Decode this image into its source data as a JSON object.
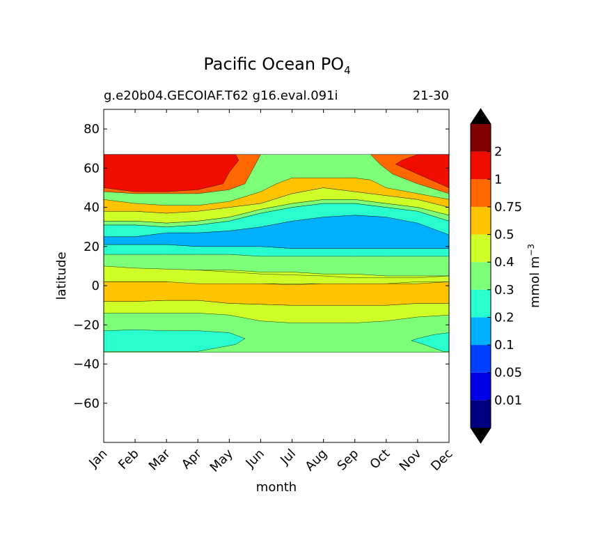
{
  "chart_data": {
    "type": "contourf",
    "title": "Pacific Ocean PO",
    "title_subscript": "4",
    "subtitle_left": "g.e20b04.GECOIAF.T62 g16.eval.091i",
    "subtitle_right": "21-30",
    "xlabel": "month",
    "ylabel": "latitude",
    "x_categories": [
      "Jan",
      "Feb",
      "Mar",
      "Apr",
      "May",
      "Jun",
      "Jul",
      "Aug",
      "Sep",
      "Oct",
      "Nov",
      "Dec"
    ],
    "xlim": [
      0,
      11
    ],
    "ylim": [
      -80,
      90
    ],
    "yticks": [
      80,
      60,
      40,
      20,
      0,
      -20,
      -40,
      -60
    ],
    "ytick_labels": [
      "80",
      "60",
      "40",
      "20",
      "0",
      "−20",
      "−40",
      "−60"
    ],
    "data_lat_range": [
      -34,
      67
    ],
    "colorbar": {
      "label": "mmol m",
      "label_superscript": "−3",
      "extend": "both",
      "tick_labels": [
        "0.01",
        "0.05",
        "0.1",
        "0.2",
        "0.3",
        "0.4",
        "0.5",
        "0.75",
        "1",
        "2"
      ],
      "colors": [
        "#000080",
        "#0000e6",
        "#0040ff",
        "#00b0ff",
        "#29ffce",
        "#7dff7a",
        "#ceff29",
        "#ffc400",
        "#ff6800",
        "#f10c00",
        "#800000"
      ],
      "under_color": "#000000",
      "over_color": "#000000"
    },
    "bands": [
      {
        "name": "band-0.2-0.3-south",
        "color": "#29ffce",
        "points": [
          [
            0,
            -33.5
          ],
          [
            0,
            -23
          ],
          [
            1,
            -22.5
          ],
          [
            2,
            -23
          ],
          [
            3,
            -23
          ],
          [
            4,
            -24
          ],
          [
            4.5,
            -27
          ],
          [
            4.2,
            -30
          ],
          [
            3,
            -33.5
          ]
        ]
      },
      {
        "name": "band-0.2-0.3-south-east",
        "color": "#29ffce",
        "points": [
          [
            11,
            -33.5
          ],
          [
            11,
            -24
          ],
          [
            10.5,
            -25
          ],
          [
            10,
            -27
          ],
          [
            9.8,
            -28
          ],
          [
            10.2,
            -30
          ],
          [
            10.8,
            -33.5
          ]
        ]
      },
      {
        "name": "band-0.4-0.5-south",
        "color": "#ceff29",
        "points": [
          [
            0,
            -8
          ],
          [
            1,
            -8
          ],
          [
            2,
            -7.5
          ],
          [
            3,
            -7.5
          ],
          [
            4,
            -9
          ],
          [
            5,
            -9.5
          ],
          [
            6,
            -10
          ],
          [
            7,
            -10
          ],
          [
            8,
            -10
          ],
          [
            9,
            -10
          ],
          [
            10,
            -9
          ],
          [
            11,
            -9
          ],
          [
            11,
            -15
          ],
          [
            10,
            -16
          ],
          [
            9,
            -18
          ],
          [
            8,
            -19
          ],
          [
            7,
            -19
          ],
          [
            6,
            -19
          ],
          [
            5,
            -18
          ],
          [
            4,
            -15
          ],
          [
            3,
            -14
          ],
          [
            2,
            -14
          ],
          [
            1,
            -14
          ],
          [
            0,
            -14
          ]
        ]
      },
      {
        "name": "band-0.5-0.75-equator",
        "color": "#ffc400",
        "points": [
          [
            0,
            2
          ],
          [
            1,
            2
          ],
          [
            2,
            2
          ],
          [
            3,
            2
          ],
          [
            4,
            2
          ],
          [
            5,
            2
          ],
          [
            6,
            2
          ],
          [
            7,
            2
          ],
          [
            8,
            3
          ],
          [
            9,
            3.5
          ],
          [
            10,
            4
          ],
          [
            11,
            5
          ],
          [
            11,
            -9
          ],
          [
            10,
            -9
          ],
          [
            9,
            -10
          ],
          [
            8,
            -10
          ],
          [
            7,
            -10
          ],
          [
            6,
            -10
          ],
          [
            5,
            -9.5
          ],
          [
            4,
            -9
          ],
          [
            3,
            -7.5
          ],
          [
            2,
            -7.5
          ],
          [
            1,
            -8
          ],
          [
            0,
            -8
          ]
        ]
      },
      {
        "name": "band-0.4-0.5-north-eq",
        "color": "#ceff29",
        "points": [
          [
            0,
            8
          ],
          [
            1,
            8
          ],
          [
            2,
            8
          ],
          [
            3,
            8
          ],
          [
            4,
            8
          ],
          [
            5,
            7
          ],
          [
            6,
            7
          ],
          [
            7,
            6
          ],
          [
            8,
            6
          ],
          [
            9,
            5
          ],
          [
            10,
            5
          ],
          [
            11,
            5
          ],
          [
            11,
            2
          ],
          [
            10,
            1
          ],
          [
            9,
            1
          ],
          [
            8,
            1
          ],
          [
            7,
            1
          ],
          [
            6,
            0.5
          ],
          [
            5,
            1
          ],
          [
            4,
            1.5
          ],
          [
            3,
            1.5
          ],
          [
            2,
            2
          ],
          [
            1,
            2
          ],
          [
            0,
            2
          ]
        ]
      },
      {
        "name": "band-0.4-0.5-north-trop",
        "color": "#ceff29",
        "points": [
          [
            0,
            10
          ],
          [
            1,
            9
          ],
          [
            2,
            8.5
          ],
          [
            3,
            8
          ],
          [
            4,
            7
          ],
          [
            5,
            6
          ],
          [
            6,
            5.5
          ],
          [
            7,
            5
          ],
          [
            8,
            4
          ],
          [
            9,
            4
          ],
          [
            10,
            4
          ],
          [
            11,
            5
          ],
          [
            11,
            2
          ],
          [
            10,
            2
          ],
          [
            9,
            1
          ],
          [
            8,
            1
          ],
          [
            7,
            1
          ],
          [
            6,
            1
          ],
          [
            5,
            1
          ],
          [
            4,
            1
          ],
          [
            3,
            1
          ],
          [
            2,
            2
          ],
          [
            1,
            2
          ],
          [
            0,
            2
          ]
        ]
      },
      {
        "name": "band-0.2-0.3-tropics",
        "color": "#29ffce",
        "points": [
          [
            0,
            21
          ],
          [
            1,
            21
          ],
          [
            2,
            21
          ],
          [
            3,
            20
          ],
          [
            4,
            20
          ],
          [
            5,
            20
          ],
          [
            6,
            19
          ],
          [
            7,
            19
          ],
          [
            8,
            19
          ],
          [
            9,
            19
          ],
          [
            10,
            19
          ],
          [
            11,
            19
          ],
          [
            11,
            15
          ],
          [
            10,
            15
          ],
          [
            9,
            15
          ],
          [
            8,
            15
          ],
          [
            7,
            15
          ],
          [
            6,
            15
          ],
          [
            5,
            15
          ],
          [
            4,
            16
          ],
          [
            3,
            16
          ],
          [
            2,
            16
          ],
          [
            1,
            16
          ],
          [
            0,
            16
          ]
        ]
      },
      {
        "name": "band-0.1-0.2",
        "color": "#00b0ff",
        "points": [
          [
            0,
            25
          ],
          [
            1,
            25
          ],
          [
            2,
            27
          ],
          [
            3,
            27
          ],
          [
            4,
            28
          ],
          [
            5,
            30
          ],
          [
            6,
            33
          ],
          [
            7,
            35
          ],
          [
            8,
            36
          ],
          [
            9,
            35
          ],
          [
            10,
            33
          ],
          [
            11,
            26
          ],
          [
            11,
            19
          ],
          [
            10,
            19
          ],
          [
            9,
            19
          ],
          [
            8,
            19
          ],
          [
            7,
            19
          ],
          [
            6,
            19
          ],
          [
            5,
            20
          ],
          [
            4,
            20
          ],
          [
            3,
            20
          ],
          [
            2,
            21
          ],
          [
            1,
            21
          ],
          [
            0,
            21
          ]
        ]
      },
      {
        "name": "band-0.2-0.3-north",
        "color": "#29ffce",
        "points": [
          [
            0,
            31
          ],
          [
            1,
            31
          ],
          [
            2,
            30
          ],
          [
            3,
            31
          ],
          [
            4,
            33
          ],
          [
            5,
            37
          ],
          [
            6,
            40
          ],
          [
            7,
            42
          ],
          [
            8,
            42
          ],
          [
            9,
            40
          ],
          [
            10,
            38
          ],
          [
            11,
            33
          ],
          [
            11,
            26
          ],
          [
            10,
            32
          ],
          [
            9,
            35
          ],
          [
            8,
            36
          ],
          [
            7,
            35
          ],
          [
            6,
            33
          ],
          [
            5,
            30
          ],
          [
            4,
            28
          ],
          [
            3,
            27
          ],
          [
            2,
            27
          ],
          [
            1,
            25
          ],
          [
            0,
            25
          ]
        ]
      },
      {
        "name": "band-0.3-0.4-north",
        "color": "#7dff7a",
        "points": [
          [
            0,
            33
          ],
          [
            1,
            33
          ],
          [
            2,
            32
          ],
          [
            3,
            33
          ],
          [
            4,
            35
          ],
          [
            5,
            39
          ],
          [
            6,
            42
          ],
          [
            7,
            44
          ],
          [
            8,
            44
          ],
          [
            9,
            42
          ],
          [
            10,
            40
          ],
          [
            11,
            36
          ],
          [
            11,
            33
          ],
          [
            10,
            38
          ],
          [
            9,
            40
          ],
          [
            8,
            42
          ],
          [
            7,
            42
          ],
          [
            6,
            40
          ],
          [
            5,
            37
          ],
          [
            4,
            33
          ],
          [
            3,
            31
          ],
          [
            2,
            30
          ],
          [
            1,
            31
          ],
          [
            0,
            31
          ]
        ]
      },
      {
        "name": "band-0.4-0.5-north",
        "color": "#ceff29",
        "points": [
          [
            0,
            38
          ],
          [
            1,
            38
          ],
          [
            2,
            37
          ],
          [
            3,
            38
          ],
          [
            4,
            40
          ],
          [
            5,
            42
          ],
          [
            6,
            47
          ],
          [
            7,
            50
          ],
          [
            8,
            48
          ],
          [
            9,
            46
          ],
          [
            10,
            44
          ],
          [
            11,
            40
          ],
          [
            11,
            36
          ],
          [
            10,
            40
          ],
          [
            9,
            42
          ],
          [
            8,
            44
          ],
          [
            7,
            44
          ],
          [
            6,
            42
          ],
          [
            5,
            39
          ],
          [
            4,
            35
          ],
          [
            3,
            33
          ],
          [
            2,
            32
          ],
          [
            1,
            33
          ],
          [
            0,
            33
          ]
        ]
      },
      {
        "name": "band-0.5-0.75-north",
        "color": "#ffc400",
        "points": [
          [
            0,
            44
          ],
          [
            1,
            42
          ],
          [
            2,
            41
          ],
          [
            3,
            41
          ],
          [
            4,
            43
          ],
          [
            5,
            48
          ],
          [
            5.5,
            52
          ],
          [
            6,
            55
          ],
          [
            7,
            55
          ],
          [
            8,
            55
          ],
          [
            8.5,
            54
          ],
          [
            9,
            50
          ],
          [
            10,
            47
          ],
          [
            11,
            44
          ],
          [
            11,
            40
          ],
          [
            10,
            44
          ],
          [
            9,
            46
          ],
          [
            8,
            48
          ],
          [
            7,
            50
          ],
          [
            6,
            47
          ],
          [
            5,
            42
          ],
          [
            4,
            40
          ],
          [
            3,
            38
          ],
          [
            2,
            37
          ],
          [
            1,
            38
          ],
          [
            0,
            38
          ]
        ]
      },
      {
        "name": "band-0.75-1-north",
        "color": "#ff6800",
        "points": [
          [
            0,
            48
          ],
          [
            1,
            47
          ],
          [
            2,
            47
          ],
          [
            3,
            47
          ],
          [
            4,
            49
          ],
          [
            4.5,
            52
          ],
          [
            4.7,
            58
          ],
          [
            5,
            67
          ],
          [
            4,
            67
          ],
          [
            0,
            67
          ]
        ]
      },
      {
        "name": "band-0.75-1-north-east",
        "color": "#ff6800",
        "points": [
          [
            11,
            67
          ],
          [
            8.5,
            67
          ],
          [
            8.8,
            62
          ],
          [
            9.2,
            57
          ],
          [
            10,
            52
          ],
          [
            11,
            47
          ]
        ]
      },
      {
        "name": "band-1-2-north",
        "color": "#f10c00",
        "points": [
          [
            0,
            50
          ],
          [
            1,
            48
          ],
          [
            2,
            48
          ],
          [
            3,
            49
          ],
          [
            3.8,
            52
          ],
          [
            4,
            58
          ],
          [
            4.3,
            64
          ],
          [
            4.2,
            67
          ],
          [
            0,
            67
          ]
        ]
      },
      {
        "name": "band-1-2-north-east",
        "color": "#f10c00",
        "points": [
          [
            11,
            67
          ],
          [
            10,
            67
          ],
          [
            9.5,
            64
          ],
          [
            9.3,
            62
          ],
          [
            10,
            57
          ],
          [
            11,
            50
          ]
        ]
      }
    ]
  }
}
